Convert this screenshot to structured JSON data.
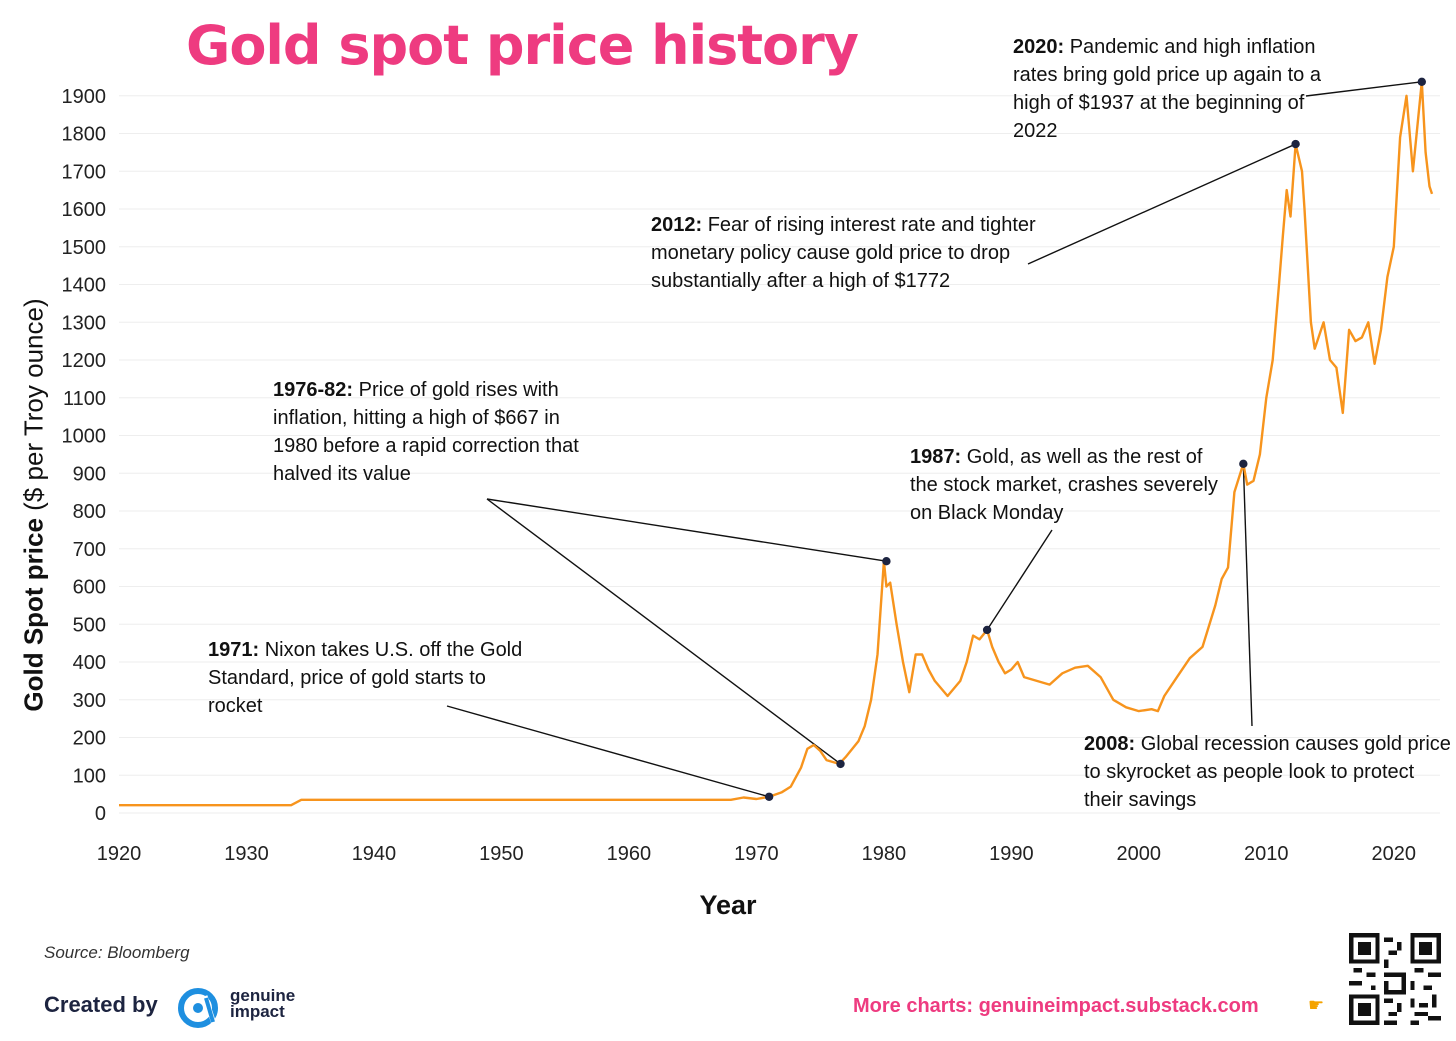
{
  "title": "Gold spot price history",
  "ylabel_main": "Gold Spot price",
  "ylabel_sub": " ($ per Troy ounce)",
  "xlabel": "Year",
  "annotations": {
    "a1971": {
      "year": "1971:",
      "text": " Nixon takes U.S. off the Gold Standard, price of gold starts to rocket"
    },
    "a1976": {
      "year": "1976-82:",
      "text": " Price of gold rises with inflation, hitting a high of $667 in 1980 before a rapid correction that halved its value"
    },
    "a1987": {
      "year": "1987:",
      "text": " Gold, as well as the rest of the stock market, crashes severely on Black Monday"
    },
    "a2008": {
      "year": "2008:",
      "text": " Global recession causes gold price to skyrocket as people look to protect their savings"
    },
    "a2012": {
      "year": "2012:",
      "text": " Fear of rising interest rate and tighter monetary policy cause gold price to drop substantially after a high of $1772"
    },
    "a2020": {
      "year": "2020:",
      "text": " Pandemic and high inflation rates bring gold price up again to a high of $1937 at the beginning of 2022"
    }
  },
  "footer": {
    "source": "Source: Bloomberg",
    "created_by": "Created by",
    "brand_line1": "genuine",
    "brand_line2": "impact",
    "more_charts": "More charts: genuineimpact.substack.com",
    "pointer_icon": "pointing-hand-icon"
  },
  "colors": {
    "line": "#f7941d",
    "title": "#ee3b80",
    "marker": "#1d2440",
    "grid": "#eeeeee"
  },
  "chart_data": {
    "type": "line",
    "title": "Gold spot price history",
    "xlabel": "Year",
    "ylabel": "Gold Spot price ($ per Troy ounce)",
    "xlim": [
      1920,
      2023
    ],
    "ylim": [
      0,
      1900
    ],
    "xticks": [
      1920,
      1930,
      1940,
      1950,
      1960,
      1970,
      1980,
      1990,
      2000,
      2010,
      2020
    ],
    "yticks": [
      0,
      100,
      200,
      300,
      400,
      500,
      600,
      700,
      800,
      900,
      1000,
      1100,
      1200,
      1300,
      1400,
      1500,
      1600,
      1700,
      1800,
      1900
    ],
    "grid": true,
    "series": [
      {
        "x": [
          1920,
          1925,
          1933.5,
          1934.3,
          1940,
          1945,
          1950,
          1960,
          1968,
          1969,
          1970,
          1971,
          1972,
          1972.7,
          1973.5,
          1974,
          1974.5,
          1975,
          1975.5,
          1976.5,
          1977,
          1978,
          1978.5,
          1979,
          1979.5,
          1980.0,
          1980.2,
          1980.5,
          1981,
          1981.5,
          1982,
          1982.5,
          1983,
          1983.5,
          1984,
          1985,
          1985.5,
          1986,
          1986.5,
          1987,
          1987.5,
          1988.1,
          1988.5,
          1989,
          1989.5,
          1990,
          1990.5,
          1991,
          1992,
          1993,
          1994,
          1995,
          1996,
          1997,
          1998,
          1999,
          2000,
          2001,
          2001.5,
          2002,
          2003,
          2004,
          2005,
          2006,
          2006.5,
          2007,
          2007.5,
          2008.2,
          2008.5,
          2009,
          2009.5,
          2010,
          2010.5,
          2011,
          2011.3,
          2011.6,
          2011.9,
          2012.3,
          2012.8,
          2013,
          2013.5,
          2013.8,
          2014,
          2014.5,
          2015,
          2015.5,
          2016,
          2016.5,
          2017,
          2017.5,
          2018,
          2018.5,
          2019,
          2019.5,
          2020,
          2020.5,
          2021,
          2021.5,
          2022.2,
          2022.5,
          2022.8,
          2023
        ],
        "y": [
          20.7,
          20.7,
          20.7,
          35,
          35,
          35,
          35,
          35,
          35,
          41,
          37,
          43,
          55,
          70,
          120,
          170,
          180,
          165,
          140,
          130,
          148,
          190,
          230,
          300,
          420,
          667,
          600,
          610,
          500,
          400,
          320,
          420,
          420,
          380,
          350,
          310,
          330,
          350,
          400,
          470,
          460,
          485,
          440,
          400,
          370,
          380,
          400,
          360,
          350,
          340,
          370,
          385,
          390,
          360,
          300,
          280,
          270,
          275,
          270,
          310,
          360,
          410,
          440,
          550,
          620,
          650,
          850,
          925,
          870,
          880,
          950,
          1100,
          1200,
          1400,
          1530,
          1650,
          1580,
          1772,
          1700,
          1600,
          1300,
          1230,
          1250,
          1300,
          1200,
          1180,
          1060,
          1280,
          1250,
          1260,
          1300,
          1190,
          1280,
          1420,
          1500,
          1790,
          1900,
          1700,
          1937,
          1750,
          1660,
          1640
        ]
      }
    ],
    "highlights": [
      {
        "x": 1971,
        "y": 43,
        "label": "1971"
      },
      {
        "x": 1976.6,
        "y": 130,
        "label": "1976-82"
      },
      {
        "x": 1980.2,
        "y": 667,
        "label": "1980 high $667"
      },
      {
        "x": 1988.1,
        "y": 485,
        "label": "1987"
      },
      {
        "x": 2008.2,
        "y": 925,
        "label": "2008"
      },
      {
        "x": 2012.3,
        "y": 1772,
        "label": "2012 high $1772"
      },
      {
        "x": 2022.2,
        "y": 1937,
        "label": "2022 high $1937"
      }
    ]
  }
}
